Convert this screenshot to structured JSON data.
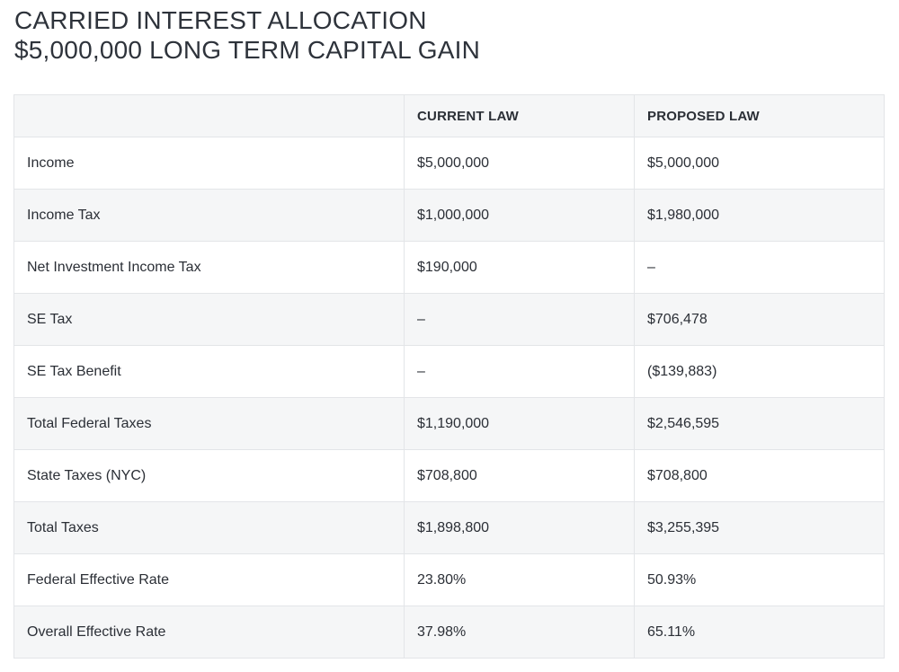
{
  "title": {
    "line1": "CARRIED INTEREST ALLOCATION",
    "line2": "$5,000,000 LONG TERM CAPITAL GAIN"
  },
  "table": {
    "headers": [
      "",
      "CURRENT LAW",
      "PROPOSED LAW"
    ],
    "rows": [
      {
        "label": "Income",
        "current": "$5,000,000",
        "proposed": "$5,000,000"
      },
      {
        "label": "Income Tax",
        "current": "$1,000,000",
        "proposed": "$1,980,000"
      },
      {
        "label": "Net Investment Income Tax",
        "current": "$190,000",
        "proposed": "–"
      },
      {
        "label": "SE Tax",
        "current": "–",
        "proposed": "$706,478"
      },
      {
        "label": "SE Tax Benefit",
        "current": "–",
        "proposed": "($139,883)"
      },
      {
        "label": "Total Federal Taxes",
        "current": "$1,190,000",
        "proposed": "$2,546,595"
      },
      {
        "label": "State Taxes (NYC)",
        "current": "$708,800",
        "proposed": "$708,800"
      },
      {
        "label": "Total Taxes",
        "current": "$1,898,800",
        "proposed": "$3,255,395"
      },
      {
        "label": "Federal Effective Rate",
        "current": "23.80%",
        "proposed": "50.93%"
      },
      {
        "label": "Overall Effective Rate",
        "current": "37.98%",
        "proposed": "65.11%"
      }
    ]
  }
}
